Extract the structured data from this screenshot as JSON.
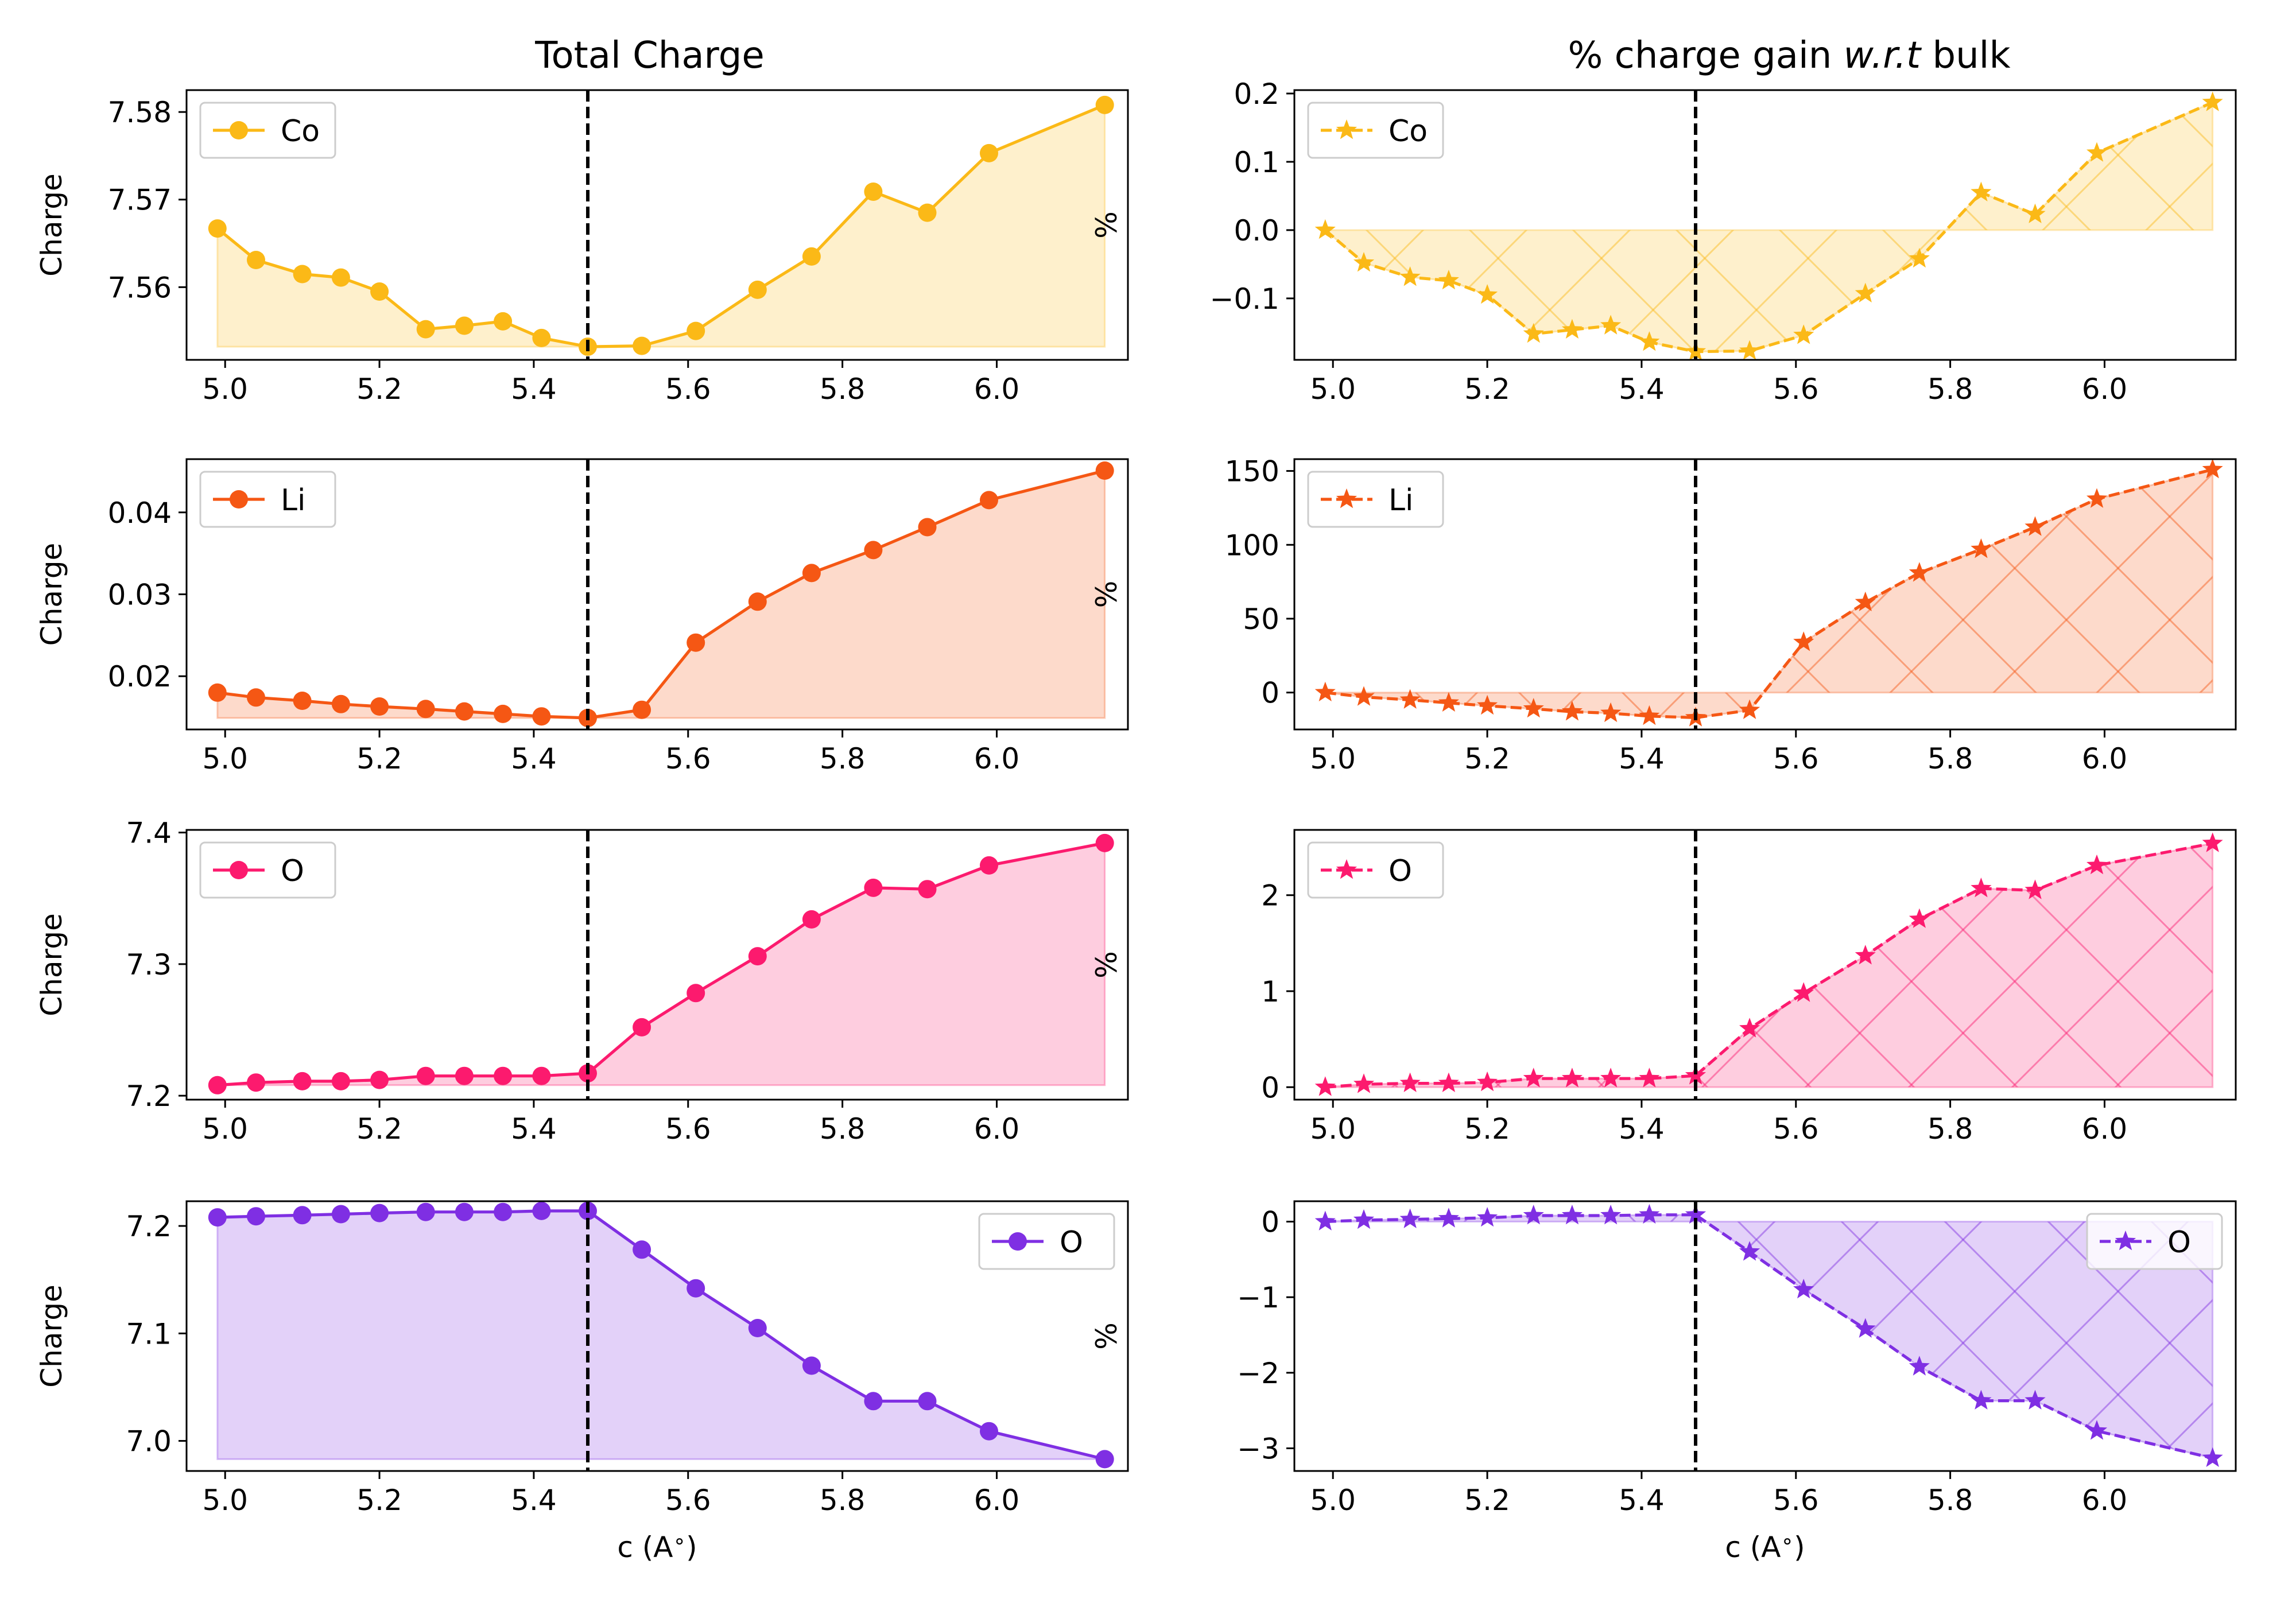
{
  "titles": {
    "left": "Total Charge",
    "right_prefix": "% charge gain ",
    "right_italic": "w.r.t",
    "right_suffix": " bulk"
  },
  "reference_line_x": 5.47,
  "chart_data": [
    {
      "type": "area",
      "column": "left",
      "row": 0,
      "xlabel": "",
      "ylabel": "Charge",
      "xlim": [
        4.95,
        6.17
      ],
      "ylim": [
        7.5517,
        7.5825
      ],
      "xticks": [
        "5.0",
        "5.2",
        "5.4",
        "5.6",
        "5.8",
        "6.0"
      ],
      "yticks": [
        "7.56",
        "7.57",
        "7.58"
      ],
      "legend_position": "upper-left",
      "fill_base": "min",
      "hatched": false,
      "series": [
        {
          "name": "Co",
          "color": "#fbb917",
          "marker": "circle",
          "linestyle": "solid",
          "x": [
            4.99,
            5.04,
            5.1,
            5.15,
            5.2,
            5.26,
            5.31,
            5.36,
            5.41,
            5.47,
            5.54,
            5.61,
            5.69,
            5.76,
            5.84,
            5.91,
            5.99,
            6.14
          ],
          "y": [
            7.5667,
            7.5631,
            7.5615,
            7.5611,
            7.5595,
            7.5552,
            7.5556,
            7.5561,
            7.5542,
            7.5532,
            7.5533,
            7.555,
            7.5597,
            7.5635,
            7.5709,
            7.5685,
            7.5753,
            7.5808
          ]
        }
      ]
    },
    {
      "type": "area",
      "column": "right",
      "row": 0,
      "xlabel": "",
      "ylabel": "%",
      "xlim": [
        4.95,
        6.17
      ],
      "ylim": [
        -0.19,
        0.205
      ],
      "xticks": [
        "5.0",
        "5.2",
        "5.4",
        "5.6",
        "5.8",
        "6.0"
      ],
      "yticks": [
        "−0.1",
        "0.0",
        "0.1",
        "0.2"
      ],
      "legend_position": "upper-left",
      "fill_base": "zero",
      "hatched": true,
      "series": [
        {
          "name": "Co",
          "color": "#fbb917",
          "marker": "star",
          "linestyle": "dashed",
          "x": [
            4.99,
            5.04,
            5.1,
            5.15,
            5.2,
            5.26,
            5.31,
            5.36,
            5.41,
            5.47,
            5.54,
            5.61,
            5.69,
            5.76,
            5.84,
            5.91,
            5.99,
            6.14
          ],
          "y": [
            0.0,
            -0.048,
            -0.069,
            -0.074,
            -0.095,
            -0.152,
            -0.146,
            -0.14,
            -0.164,
            -0.178,
            -0.177,
            -0.154,
            -0.093,
            -0.042,
            0.055,
            0.023,
            0.113,
            0.187
          ]
        }
      ]
    },
    {
      "type": "area",
      "column": "left",
      "row": 1,
      "xlabel": "",
      "ylabel": "Charge",
      "xlim": [
        4.95,
        6.17
      ],
      "ylim": [
        0.0135,
        0.0465
      ],
      "xticks": [
        "5.0",
        "5.2",
        "5.4",
        "5.6",
        "5.8",
        "6.0"
      ],
      "yticks": [
        "0.02",
        "0.03",
        "0.04"
      ],
      "legend_position": "upper-left",
      "fill_base": "min",
      "hatched": false,
      "series": [
        {
          "name": "Li",
          "color": "#f55714",
          "marker": "circle",
          "linestyle": "solid",
          "x": [
            4.99,
            5.04,
            5.1,
            5.15,
            5.2,
            5.26,
            5.31,
            5.36,
            5.41,
            5.47,
            5.54,
            5.61,
            5.69,
            5.76,
            5.84,
            5.91,
            5.99,
            6.14
          ],
          "y": [
            0.018,
            0.0174,
            0.017,
            0.0166,
            0.0163,
            0.016,
            0.0157,
            0.0154,
            0.0151,
            0.0149,
            0.0159,
            0.0241,
            0.0291,
            0.0326,
            0.0354,
            0.0382,
            0.0415,
            0.0451
          ]
        }
      ]
    },
    {
      "type": "area",
      "column": "right",
      "row": 1,
      "xlabel": "",
      "ylabel": "%",
      "xlim": [
        4.95,
        6.17
      ],
      "ylim": [
        -25,
        158
      ],
      "xticks": [
        "5.0",
        "5.2",
        "5.4",
        "5.6",
        "5.8",
        "6.0"
      ],
      "yticks": [
        "0",
        "50",
        "100",
        "150"
      ],
      "legend_position": "upper-left",
      "fill_base": "zero",
      "hatched": true,
      "series": [
        {
          "name": "Li",
          "color": "#f55714",
          "marker": "star",
          "linestyle": "dashed",
          "x": [
            4.99,
            5.04,
            5.1,
            5.15,
            5.2,
            5.26,
            5.31,
            5.36,
            5.41,
            5.47,
            5.54,
            5.61,
            5.69,
            5.76,
            5.84,
            5.91,
            5.99,
            6.14
          ],
          "y": [
            0,
            -3,
            -5,
            -7,
            -9,
            -11,
            -13,
            -14,
            -16,
            -17,
            -12,
            34,
            61,
            81,
            97,
            112,
            131,
            151
          ]
        }
      ]
    },
    {
      "type": "area",
      "column": "left",
      "row": 2,
      "xlabel": "",
      "ylabel": "Charge",
      "xlim": [
        4.95,
        6.17
      ],
      "ylim": [
        7.197,
        7.402
      ],
      "xticks": [
        "5.0",
        "5.2",
        "5.4",
        "5.6",
        "5.8",
        "6.0"
      ],
      "yticks": [
        "7.2",
        "7.3",
        "7.4"
      ],
      "legend_position": "upper-left",
      "fill_base": "min",
      "hatched": false,
      "series": [
        {
          "name": "O",
          "color": "#fc1a6e",
          "marker": "circle",
          "linestyle": "solid",
          "x": [
            4.99,
            5.04,
            5.1,
            5.15,
            5.2,
            5.26,
            5.31,
            5.36,
            5.41,
            5.47,
            5.54,
            5.61,
            5.69,
            5.76,
            5.84,
            5.91,
            5.99,
            6.14
          ],
          "y": [
            7.208,
            7.21,
            7.211,
            7.211,
            7.212,
            7.215,
            7.215,
            7.215,
            7.215,
            7.217,
            7.252,
            7.278,
            7.306,
            7.334,
            7.358,
            7.357,
            7.375,
            7.392
          ]
        }
      ]
    },
    {
      "type": "area",
      "column": "right",
      "row": 2,
      "xlabel": "",
      "ylabel": "%",
      "xlim": [
        4.95,
        6.17
      ],
      "ylim": [
        -0.13,
        2.68
      ],
      "xticks": [
        "5.0",
        "5.2",
        "5.4",
        "5.6",
        "5.8",
        "6.0"
      ],
      "yticks": [
        "0",
        "1",
        "2"
      ],
      "legend_position": "upper-left",
      "fill_base": "zero",
      "hatched": true,
      "series": [
        {
          "name": "O",
          "color": "#fc1a6e",
          "marker": "star",
          "linestyle": "dashed",
          "x": [
            4.99,
            5.04,
            5.1,
            5.15,
            5.2,
            5.26,
            5.31,
            5.36,
            5.41,
            5.47,
            5.54,
            5.61,
            5.69,
            5.76,
            5.84,
            5.91,
            5.99,
            6.14
          ],
          "y": [
            0.0,
            0.03,
            0.04,
            0.04,
            0.05,
            0.09,
            0.09,
            0.09,
            0.09,
            0.12,
            0.61,
            0.98,
            1.37,
            1.75,
            2.07,
            2.05,
            2.31,
            2.54
          ]
        }
      ]
    },
    {
      "type": "area",
      "column": "left",
      "row": 3,
      "xlabel": "c (A$^\\circ$)",
      "ylabel": "Charge",
      "xlim": [
        4.95,
        6.17
      ],
      "ylim": [
        6.972,
        7.223
      ],
      "xticks": [
        "5.0",
        "5.2",
        "5.4",
        "5.6",
        "5.8",
        "6.0"
      ],
      "yticks": [
        "7.0",
        "7.1",
        "7.2"
      ],
      "legend_position": "upper-right",
      "fill_base": "min",
      "hatched": false,
      "series": [
        {
          "name": "O",
          "color": "#7f2fe3",
          "marker": "circle",
          "linestyle": "solid",
          "x": [
            4.99,
            5.04,
            5.1,
            5.15,
            5.2,
            5.26,
            5.31,
            5.36,
            5.41,
            5.47,
            5.54,
            5.61,
            5.69,
            5.76,
            5.84,
            5.91,
            5.99,
            6.14
          ],
          "y": [
            7.208,
            7.209,
            7.21,
            7.211,
            7.212,
            7.213,
            7.213,
            7.213,
            7.214,
            7.214,
            7.178,
            7.142,
            7.105,
            7.07,
            7.037,
            7.037,
            7.009,
            6.983
          ]
        }
      ]
    },
    {
      "type": "area",
      "column": "right",
      "row": 3,
      "xlabel": "c (A$^\\circ$)",
      "ylabel": "%",
      "xlim": [
        4.95,
        6.17
      ],
      "ylim": [
        -3.3,
        0.27
      ],
      "xticks": [
        "5.0",
        "5.2",
        "5.4",
        "5.6",
        "5.8",
        "6.0"
      ],
      "yticks": [
        "−3",
        "−2",
        "−1",
        "0"
      ],
      "legend_position": "upper-right",
      "fill_base": "zero",
      "hatched": true,
      "series": [
        {
          "name": "O",
          "color": "#7f2fe3",
          "marker": "star",
          "linestyle": "dashed",
          "x": [
            4.99,
            5.04,
            5.1,
            5.15,
            5.2,
            5.26,
            5.31,
            5.36,
            5.41,
            5.47,
            5.54,
            5.61,
            5.69,
            5.76,
            5.84,
            5.91,
            5.99,
            6.14
          ],
          "y": [
            0.0,
            0.02,
            0.03,
            0.04,
            0.05,
            0.08,
            0.08,
            0.08,
            0.09,
            0.09,
            -0.4,
            -0.9,
            -1.42,
            -1.92,
            -2.37,
            -2.37,
            -2.77,
            -3.13
          ]
        }
      ]
    }
  ]
}
